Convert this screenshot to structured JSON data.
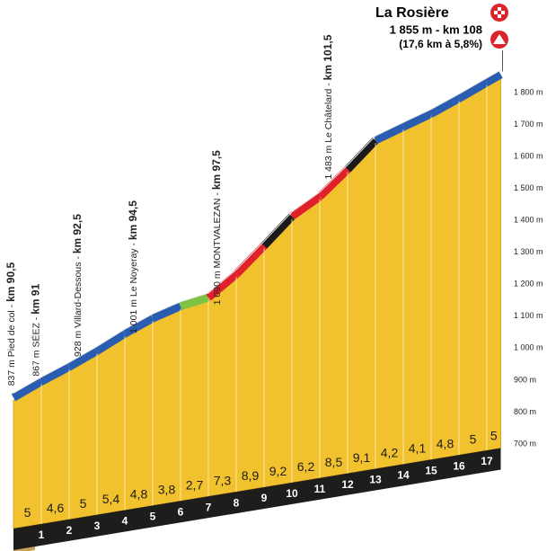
{
  "chart_data": {
    "type": "climb-profile",
    "summit": {
      "name": "La Rosière",
      "altitude": 1855,
      "km": 108,
      "label": "1 855 m - km 108",
      "note": "(17,6 km à 5,8%)"
    },
    "waypoints": [
      {
        "altitude": 837,
        "label": "837 m Pied de col - ",
        "km": 90.5,
        "km_label": "km 90,5"
      },
      {
        "altitude": 867,
        "label": "867 m SÉEZ - ",
        "km": 91,
        "km_label": "km 91"
      },
      {
        "altitude": 928,
        "label": "928 m Villard-Dessous - ",
        "km": 92.5,
        "km_label": "km 92,5"
      },
      {
        "altitude": 1001,
        "label": "1 001 m Le Noyeray - ",
        "km": 94.5,
        "km_label": "km 94,5"
      },
      {
        "altitude": 1090,
        "label": "1 090 m MONTVALEZAN - ",
        "km": 97.5,
        "km_label": "km 97,5"
      },
      {
        "altitude": 1483,
        "label": "1 483 m Le Châtelard - ",
        "km": 101.5,
        "km_label": "km 101,5"
      }
    ],
    "categories": [
      "1",
      "2",
      "3",
      "4",
      "5",
      "6",
      "7",
      "8",
      "9",
      "10",
      "11",
      "12",
      "13",
      "14",
      "15",
      "16",
      "17"
    ],
    "gradients": [
      5,
      4.6,
      5,
      5.4,
      4.8,
      3.8,
      2.7,
      7.3,
      8.9,
      9.2,
      6.2,
      8.5,
      9.1,
      4.2,
      4.1,
      4.8,
      5,
      5
    ],
    "value_labels": [
      "5",
      "4,6",
      "5",
      "5,4",
      "4,8",
      "3,8",
      "2,7",
      "7,3",
      "8,9",
      "9,2",
      "6,2",
      "8,5",
      "9,1",
      "4,2",
      "4,1",
      "4,8",
      "5",
      "5"
    ],
    "colors": [
      "#2a5db0",
      "#2a5db0",
      "#2a5db0",
      "#2a5db0",
      "#2a5db0",
      "#2a5db0",
      "#7dc242",
      "#e0202a",
      "#e0202a",
      "#1a1a1a",
      "#e0202a",
      "#e0202a",
      "#1a1a1a",
      "#2a5db0",
      "#2a5db0",
      "#2a5db0",
      "#2a5db0",
      "#2a5db0"
    ],
    "ylim": [
      700,
      1855
    ],
    "yticks": [
      {
        "value": 700,
        "label": "700 m"
      },
      {
        "value": 800,
        "label": "800 m"
      },
      {
        "value": 900,
        "label": "900 m"
      },
      {
        "value": 1000,
        "label": "1 000 m"
      },
      {
        "value": 1100,
        "label": "1 100 m"
      },
      {
        "value": 1200,
        "label": "1 200 m"
      },
      {
        "value": 1300,
        "label": "1 300 m"
      },
      {
        "value": 1400,
        "label": "1 400 m"
      },
      {
        "value": 1500,
        "label": "1 500 m"
      },
      {
        "value": 1600,
        "label": "1 600 m"
      },
      {
        "value": 1700,
        "label": "1 700 m"
      },
      {
        "value": 1800,
        "label": "1 800 m"
      }
    ]
  }
}
